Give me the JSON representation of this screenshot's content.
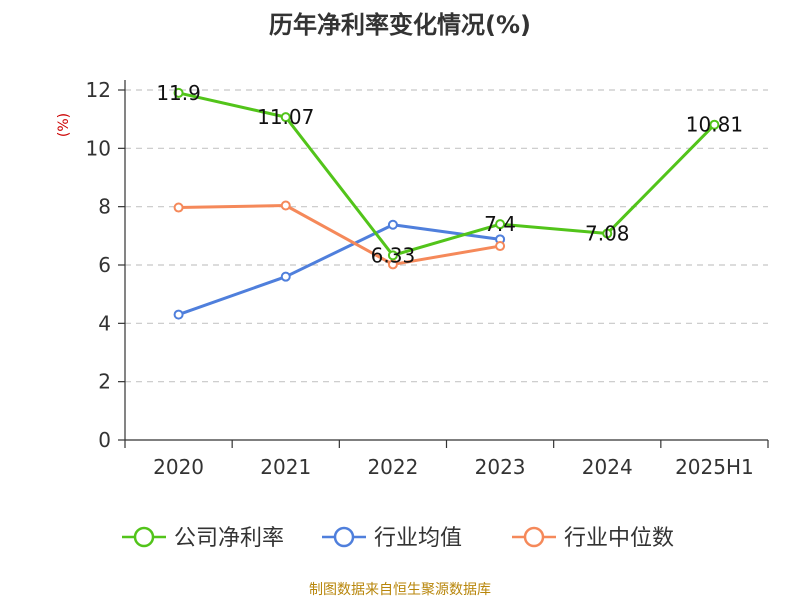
{
  "chart_data": {
    "type": "line",
    "title": "历年净利率变化情况(%)",
    "ylabel": "(%)",
    "xlabel": "",
    "categories": [
      "2020",
      "2021",
      "2022",
      "2023",
      "2024",
      "2025H1"
    ],
    "ylim": [
      0,
      12
    ],
    "yticks": [
      0,
      2,
      4,
      6,
      8,
      10,
      12
    ],
    "grid": true,
    "legend_position": "bottom",
    "series": [
      {
        "name": "公司净利率",
        "color": "#52c41a",
        "values": [
          11.9,
          11.07,
          6.33,
          7.4,
          7.08,
          10.81
        ],
        "labels": [
          "11.9",
          "11.07",
          "6.33",
          "7.4",
          "7.08",
          "10.81"
        ]
      },
      {
        "name": "行业均值",
        "color": "#4f7fdc",
        "values": [
          4.3,
          5.6,
          7.38,
          6.88,
          null,
          null
        ],
        "labels": null
      },
      {
        "name": "行业中位数",
        "color": "#f5895a",
        "values": [
          7.97,
          8.04,
          6.02,
          6.65,
          null,
          null
        ],
        "labels": null
      }
    ]
  },
  "source_text": "制图数据来自恒生聚源数据库"
}
